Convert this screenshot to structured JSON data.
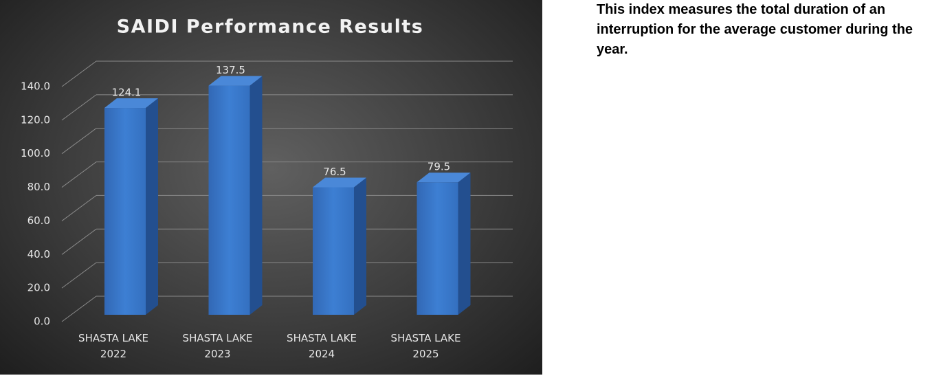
{
  "chart_data": {
    "type": "bar3d",
    "title": "SAIDI Performance Results",
    "categories": [
      "SHASTA LAKE 2022",
      "SHASTA LAKE 2023",
      "SHASTA LAKE 2024",
      "SHASTA LAKE 2025"
    ],
    "values": [
      124.1,
      137.5,
      76.5,
      79.5
    ],
    "color": "#3a78c9",
    "ylim": [
      0,
      140
    ],
    "yticks": [
      {
        "value": 0,
        "label": "0.0"
      },
      {
        "value": 20,
        "label": "20.0"
      },
      {
        "value": 40,
        "label": "40.0"
      },
      {
        "value": 60,
        "label": "60.0"
      },
      {
        "value": 80,
        "label": "80.0"
      },
      {
        "value": 100,
        "label": "100.0"
      },
      {
        "value": 120,
        "label": "120.0"
      },
      {
        "value": 140,
        "label": "140.0"
      }
    ],
    "grid": true
  },
  "description": "This index measures the total duration of an interruption for the average customer during the year."
}
